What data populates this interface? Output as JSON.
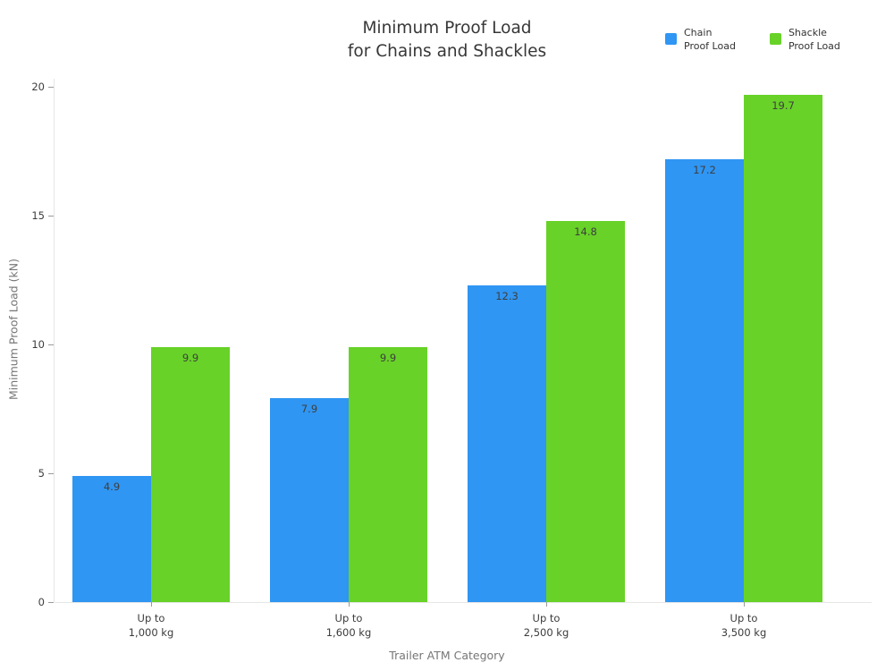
{
  "chart_data": {
    "type": "bar",
    "title": "Minimum Proof Load for Chains and Shackles",
    "title_lines": [
      "Minimum Proof Load",
      "for Chains and Shackles"
    ],
    "categories": [
      "Up to\n1,000 kg",
      "Up to\n1,600 kg",
      "Up to\n2,500 kg",
      "Up to\n3,500 kg"
    ],
    "series": [
      {
        "name": "Chain Proof Load",
        "color": "#2F96F3",
        "values": [
          4.9,
          7.9,
          12.3,
          17.2
        ]
      },
      {
        "name": "Shackle Proof Load",
        "color": "#68D228",
        "values": [
          9.9,
          9.9,
          14.8,
          19.7
        ]
      }
    ],
    "value_labels": {
      "chain": [
        "4.9",
        "7.9",
        "12.3",
        "17.2"
      ],
      "shackle": [
        "9.9",
        "9.9",
        "14.8",
        "19.7"
      ]
    },
    "xlabel": "Trailer ATM Category",
    "ylabel": "Minimum Proof Load (kN)",
    "ylim": [
      0,
      20
    ],
    "yticks": [
      0,
      5,
      10,
      15,
      20
    ],
    "grid": false,
    "legend_position": "top-right",
    "legend": {
      "entries": [
        {
          "label": "Chain Proof Load",
          "label_lines": [
            "Chain",
            "Proof Load"
          ],
          "color": "#2F96F3"
        },
        {
          "label": "Shackle Proof Load",
          "label_lines": [
            "Shackle",
            "Proof Load"
          ],
          "color": "#68D228"
        }
      ]
    }
  }
}
